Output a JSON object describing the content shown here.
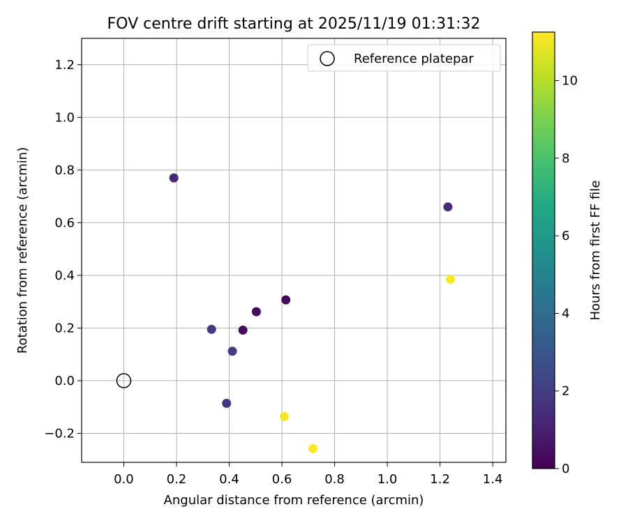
{
  "chart_data": {
    "type": "scatter",
    "title": "FOV centre drift starting at 2025/11/19 01:31:32",
    "xlabel": "Angular distance from reference (arcmin)",
    "ylabel": "Rotation from reference (arcmin)",
    "xlim": [
      -0.16,
      1.45
    ],
    "ylim": [
      -0.31,
      1.3
    ],
    "xticks": [
      0.0,
      0.2,
      0.4,
      0.6,
      0.8,
      1.0,
      1.2,
      1.4
    ],
    "xtick_labels": [
      "0.0",
      "0.2",
      "0.4",
      "0.6",
      "0.8",
      "1.0",
      "1.2",
      "1.4"
    ],
    "yticks": [
      -0.2,
      0.0,
      0.2,
      0.4,
      0.6,
      0.8,
      1.0,
      1.2
    ],
    "ytick_labels": [
      "−0.2",
      "0.0",
      "0.2",
      "0.4",
      "0.6",
      "0.8",
      "1.0",
      "1.2"
    ],
    "grid": true,
    "legend": {
      "placement": "top-right",
      "entries": [
        "Reference platepar"
      ]
    },
    "reference_point": {
      "x": 0.0,
      "y": 0.0
    },
    "points": [
      {
        "x": 0.19,
        "y": 0.77,
        "hours": 1.3
      },
      {
        "x": 1.23,
        "y": 0.66,
        "hours": 1.4
      },
      {
        "x": 1.24,
        "y": 0.385,
        "hours": 11.2
      },
      {
        "x": 0.615,
        "y": 0.307,
        "hours": 0.2
      },
      {
        "x": 0.503,
        "y": 0.262,
        "hours": 0.3
      },
      {
        "x": 0.452,
        "y": 0.192,
        "hours": 0.4
      },
      {
        "x": 0.333,
        "y": 0.195,
        "hours": 1.9
      },
      {
        "x": 0.412,
        "y": 0.112,
        "hours": 2.0
      },
      {
        "x": 0.39,
        "y": -0.086,
        "hours": 1.8
      },
      {
        "x": 0.609,
        "y": -0.136,
        "hours": 11.1
      },
      {
        "x": 0.718,
        "y": -0.258,
        "hours": 11.2
      }
    ],
    "colorbar": {
      "label": "Hours from first FF file",
      "range": [
        0,
        11.25
      ],
      "ticks": [
        0,
        2,
        4,
        6,
        8,
        10
      ],
      "tick_labels": [
        "0",
        "2",
        "4",
        "6",
        "8",
        "10"
      ],
      "colormap": "viridis"
    }
  }
}
